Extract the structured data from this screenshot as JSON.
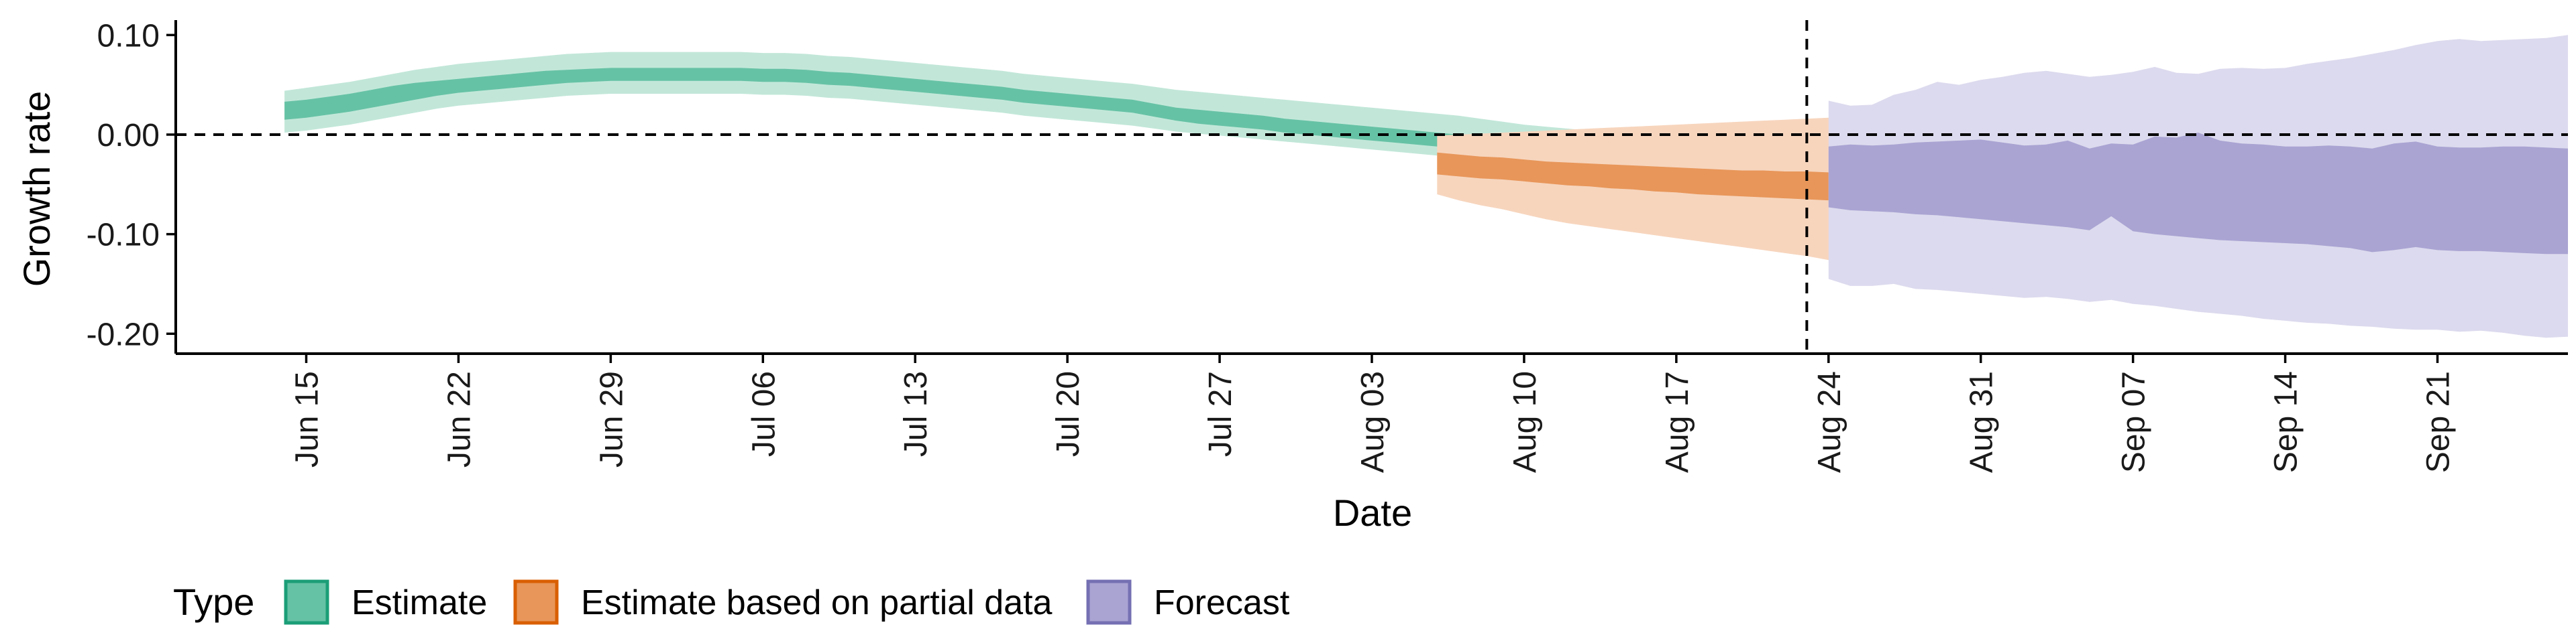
{
  "chart_data": {
    "type": "area",
    "xlabel": "Date",
    "ylabel": "Growth rate",
    "x_start": "2020-06-14",
    "x_end": "2020-09-22",
    "xlim": [
      "2020-06-09",
      "2020-09-27"
    ],
    "ylim": [
      -0.22,
      0.115
    ],
    "yticks": [
      0.1,
      0.0,
      -0.1,
      -0.2
    ],
    "ytick_labels": [
      "0.10",
      "0.00",
      "-0.10",
      "-0.20"
    ],
    "xticks": [
      "2020-06-15",
      "2020-06-22",
      "2020-06-29",
      "2020-07-06",
      "2020-07-13",
      "2020-07-20",
      "2020-07-27",
      "2020-08-03",
      "2020-08-10",
      "2020-08-17",
      "2020-08-24",
      "2020-08-31",
      "2020-09-07",
      "2020-09-14",
      "2020-09-21"
    ],
    "xtick_labels": [
      "Jun 15",
      "Jun 22",
      "Jun 29",
      "Jul 06",
      "Jul 13",
      "Jul 20",
      "Jul 27",
      "Aug 03",
      "Aug 10",
      "Aug 17",
      "Aug 24",
      "Aug 31",
      "Sep 07",
      "Sep 14",
      "Sep 21"
    ],
    "hline": 0,
    "vline": "2020-08-23",
    "grid": false,
    "legend": {
      "position": "bottom-left",
      "title": "Type",
      "entries": [
        "Estimate",
        "Estimate based on partial data",
        "Forecast"
      ]
    },
    "series": [
      {
        "name": "Estimate",
        "fill": "#66c2a5",
        "fill_light": "#c2e7d9",
        "outline": "#1b9e77",
        "start": "2020-06-14",
        "lower_90": [
          0.002,
          0.004,
          0.007,
          0.01,
          0.014,
          0.018,
          0.022,
          0.026,
          0.029,
          0.031,
          0.033,
          0.035,
          0.037,
          0.039,
          0.04,
          0.041,
          0.041,
          0.041,
          0.041,
          0.041,
          0.041,
          0.041,
          0.04,
          0.04,
          0.039,
          0.037,
          0.036,
          0.034,
          0.032,
          0.03,
          0.028,
          0.026,
          0.024,
          0.022,
          0.019,
          0.017,
          0.015,
          0.013,
          0.011,
          0.009,
          0.006,
          0.003,
          0.001,
          -0.001,
          -0.003,
          -0.005,
          -0.007,
          -0.009,
          -0.011,
          -0.013,
          -0.015,
          -0.017,
          -0.019,
          -0.021,
          -0.023,
          -0.025,
          -0.028,
          -0.031,
          -0.034,
          -0.038,
          -0.042,
          -0.046,
          -0.05,
          -0.054
        ],
        "lower_50": [
          0.015,
          0.017,
          0.02,
          0.023,
          0.027,
          0.031,
          0.035,
          0.039,
          0.042,
          0.044,
          0.046,
          0.048,
          0.05,
          0.052,
          0.053,
          0.054,
          0.054,
          0.054,
          0.054,
          0.054,
          0.054,
          0.054,
          0.053,
          0.053,
          0.052,
          0.05,
          0.049,
          0.047,
          0.045,
          0.043,
          0.041,
          0.039,
          0.037,
          0.035,
          0.032,
          0.03,
          0.028,
          0.026,
          0.024,
          0.022,
          0.018,
          0.014,
          0.011,
          0.009,
          0.007,
          0.005,
          0.002,
          0.0,
          -0.002,
          -0.004,
          -0.006,
          -0.008,
          -0.01,
          -0.012,
          -0.014,
          -0.016,
          -0.018,
          -0.02,
          -0.022,
          -0.026,
          -0.03,
          -0.033,
          -0.035,
          -0.036
        ],
        "upper_50": [
          0.033,
          0.035,
          0.038,
          0.041,
          0.045,
          0.049,
          0.052,
          0.054,
          0.056,
          0.058,
          0.06,
          0.062,
          0.064,
          0.065,
          0.066,
          0.067,
          0.067,
          0.067,
          0.067,
          0.067,
          0.067,
          0.067,
          0.066,
          0.066,
          0.065,
          0.063,
          0.062,
          0.06,
          0.058,
          0.056,
          0.054,
          0.052,
          0.05,
          0.048,
          0.045,
          0.043,
          0.041,
          0.039,
          0.037,
          0.035,
          0.031,
          0.027,
          0.025,
          0.023,
          0.021,
          0.019,
          0.016,
          0.014,
          0.012,
          0.01,
          0.008,
          0.006,
          0.004,
          0.002,
          0.0,
          -0.002,
          -0.004,
          -0.006,
          -0.008,
          -0.011,
          -0.014,
          -0.016,
          -0.018,
          -0.019
        ],
        "upper_90": [
          0.044,
          0.047,
          0.05,
          0.053,
          0.057,
          0.061,
          0.065,
          0.068,
          0.071,
          0.073,
          0.075,
          0.077,
          0.079,
          0.081,
          0.082,
          0.083,
          0.083,
          0.083,
          0.083,
          0.083,
          0.083,
          0.083,
          0.082,
          0.082,
          0.081,
          0.079,
          0.078,
          0.076,
          0.074,
          0.072,
          0.07,
          0.068,
          0.066,
          0.064,
          0.061,
          0.059,
          0.057,
          0.055,
          0.053,
          0.051,
          0.048,
          0.045,
          0.043,
          0.041,
          0.039,
          0.037,
          0.035,
          0.033,
          0.031,
          0.029,
          0.027,
          0.025,
          0.023,
          0.021,
          0.019,
          0.016,
          0.013,
          0.01,
          0.008,
          0.006,
          0.004,
          0.002,
          0.001,
          -0.001
        ]
      },
      {
        "name": "Estimate based on partial data",
        "fill": "#e8965a",
        "fill_light": "#f7d5bd",
        "outline": "#d95f02",
        "start": "2020-08-06",
        "lower_90": [
          -0.06,
          -0.066,
          -0.071,
          -0.075,
          -0.08,
          -0.085,
          -0.089,
          -0.092,
          -0.095,
          -0.098,
          -0.101,
          -0.104,
          -0.107,
          -0.11,
          -0.113,
          -0.116,
          -0.119,
          -0.122,
          -0.126,
          -0.13,
          -0.134,
          -0.138,
          -0.142,
          -0.146,
          -0.15
        ],
        "lower_50": [
          -0.04,
          -0.042,
          -0.044,
          -0.045,
          -0.047,
          -0.049,
          -0.051,
          -0.052,
          -0.054,
          -0.055,
          -0.057,
          -0.058,
          -0.06,
          -0.061,
          -0.062,
          -0.063,
          -0.064,
          -0.065,
          -0.066,
          -0.068,
          -0.07,
          -0.072,
          -0.07,
          -0.068,
          -0.066
        ],
        "upper_50": [
          -0.018,
          -0.02,
          -0.022,
          -0.023,
          -0.025,
          -0.027,
          -0.028,
          -0.029,
          -0.03,
          -0.031,
          -0.032,
          -0.033,
          -0.034,
          -0.035,
          -0.036,
          -0.036,
          -0.037,
          -0.037,
          -0.038,
          -0.038,
          -0.038,
          -0.03,
          -0.015,
          -0.01,
          -0.008
        ],
        "upper_90": [
          -0.001,
          0.0,
          0.001,
          0.002,
          0.003,
          0.004,
          0.005,
          0.006,
          0.007,
          0.008,
          0.009,
          0.01,
          0.011,
          0.012,
          0.013,
          0.014,
          0.015,
          0.016,
          0.017,
          0.018,
          0.019,
          0.02,
          0.021,
          0.022,
          0.023
        ]
      },
      {
        "name": "Forecast",
        "fill": "#a9a4d2",
        "fill_light": "#dcdaee",
        "outline": "#7570b3",
        "start": "2020-08-24",
        "lower_90": [
          -0.145,
          -0.152,
          -0.152,
          -0.15,
          -0.155,
          -0.156,
          -0.158,
          -0.16,
          -0.162,
          -0.164,
          -0.163,
          -0.165,
          -0.168,
          -0.166,
          -0.17,
          -0.172,
          -0.175,
          -0.178,
          -0.18,
          -0.182,
          -0.185,
          -0.187,
          -0.189,
          -0.19,
          -0.192,
          -0.193,
          -0.195,
          -0.196,
          -0.196,
          -0.198,
          -0.197,
          -0.199,
          -0.202,
          -0.204,
          -0.203
        ],
        "lower_50": [
          -0.073,
          -0.076,
          -0.077,
          -0.078,
          -0.08,
          -0.081,
          -0.083,
          -0.085,
          -0.087,
          -0.089,
          -0.091,
          -0.093,
          -0.096,
          -0.082,
          -0.097,
          -0.1,
          -0.102,
          -0.104,
          -0.106,
          -0.107,
          -0.108,
          -0.109,
          -0.11,
          -0.112,
          -0.114,
          -0.118,
          -0.116,
          -0.113,
          -0.116,
          -0.117,
          -0.117,
          -0.118,
          -0.119,
          -0.12,
          -0.12
        ],
        "upper_50": [
          -0.012,
          -0.01,
          -0.011,
          -0.01,
          -0.008,
          -0.007,
          -0.006,
          -0.005,
          -0.008,
          -0.011,
          -0.01,
          -0.006,
          -0.014,
          -0.009,
          -0.01,
          -0.002,
          -0.003,
          0.002,
          -0.006,
          -0.009,
          -0.01,
          -0.012,
          -0.012,
          -0.011,
          -0.012,
          -0.014,
          -0.009,
          -0.007,
          -0.012,
          -0.013,
          -0.013,
          -0.012,
          -0.012,
          -0.013,
          -0.014
        ],
        "upper_90": [
          0.034,
          0.029,
          0.03,
          0.04,
          0.045,
          0.053,
          0.05,
          0.055,
          0.058,
          0.062,
          0.064,
          0.061,
          0.058,
          0.06,
          0.063,
          0.068,
          0.062,
          0.061,
          0.066,
          0.067,
          0.066,
          0.067,
          0.071,
          0.074,
          0.077,
          0.081,
          0.085,
          0.09,
          0.094,
          0.096,
          0.094,
          0.095,
          0.096,
          0.097,
          0.1
        ]
      }
    ]
  }
}
